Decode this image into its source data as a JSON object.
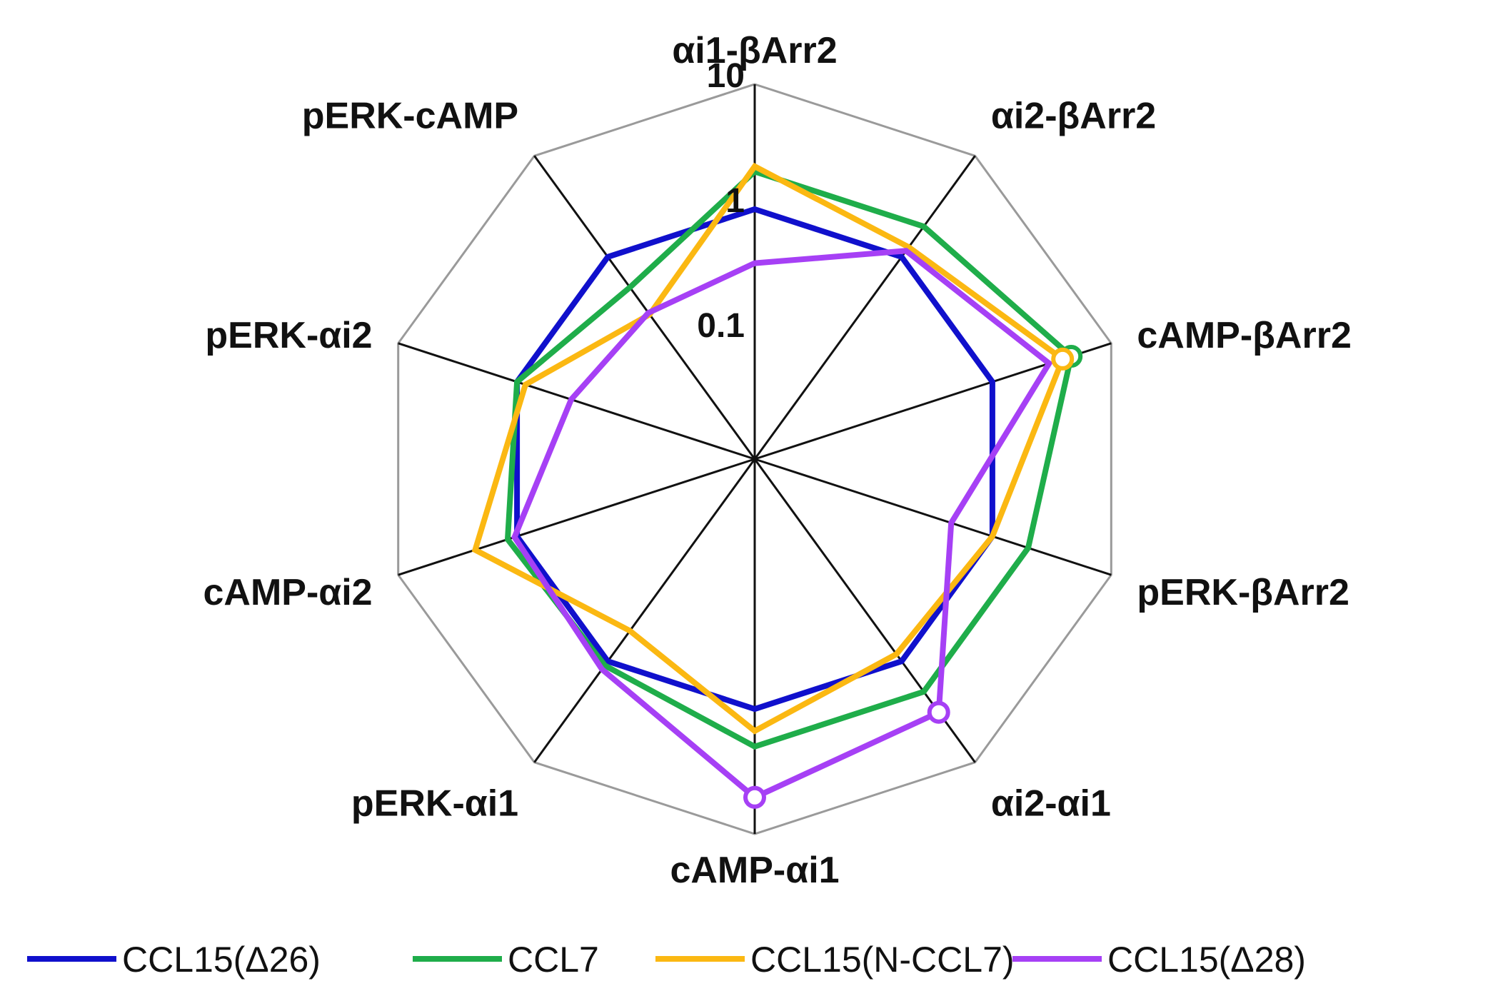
{
  "chart_data": {
    "type": "radar",
    "scale": "log",
    "rlim": [
      0.01,
      10
    ],
    "ticks": [
      {
        "value": 10,
        "label": "10"
      },
      {
        "value": 1,
        "label": "1"
      },
      {
        "value": 0.1,
        "label": "0.1"
      }
    ],
    "axes": [
      "αi1-βArr2",
      "αi2-βArr2",
      "cAMP-βArr2",
      "pERK-βArr2",
      "αi2-αi1",
      "cAMP-αi1",
      "pERK-αi1",
      "cAMP-αi2",
      "pERK-αi2",
      "pERK-cAMP"
    ],
    "series": [
      {
        "name": "CCL15(Δ26)",
        "color": "#1010cc",
        "values": [
          1,
          1,
          1,
          1,
          1,
          1,
          1,
          1,
          1,
          1
        ],
        "markers": []
      },
      {
        "name": "CCL7",
        "color": "#1fad4a",
        "values": [
          2.0,
          2.0,
          4.6,
          2.0,
          2.0,
          2.0,
          1.1,
          1.2,
          1.0,
          0.5
        ],
        "markers": [
          2
        ]
      },
      {
        "name": "CCL15(N-CCL7)",
        "color": "#fbb812",
        "values": [
          2.2,
          1.25,
          3.9,
          1.0,
          0.85,
          1.5,
          0.5,
          2.25,
          0.85,
          0.27
        ],
        "markers": [
          2
        ]
      },
      {
        "name": "CCL15(Δ28)",
        "color": "#a640f5",
        "values": [
          0.37,
          1.15,
          3.0,
          0.45,
          3.2,
          5.1,
          1.2,
          1.05,
          0.35,
          0.28
        ],
        "markers": [
          4,
          5
        ]
      }
    ],
    "grid": true,
    "legend": "bottom"
  }
}
